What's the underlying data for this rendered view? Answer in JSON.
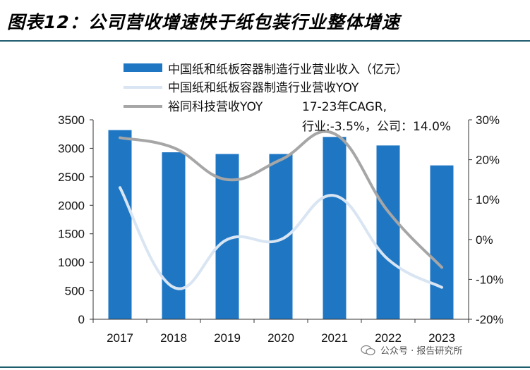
{
  "header": {
    "title": "图表12：公司营收增速快于纸包装行业整体增速"
  },
  "watermark": {
    "text": "公众号 · 报告研究所"
  },
  "annotation": {
    "line1": "17-23年CAGR,",
    "line2": "行业:-3.5%，公司：14.0%"
  },
  "colors": {
    "bar": "#1f77c4",
    "industry_line": "#d9e5f2",
    "company_line": "#a6a6a6",
    "rule": "#1e5d6e"
  },
  "chart_data": {
    "type": "bar",
    "categories": [
      "2017",
      "2018",
      "2019",
      "2020",
      "2021",
      "2022",
      "2023"
    ],
    "series": [
      {
        "name": "中国纸和纸板容器制造行业营业收入（亿元）",
        "type": "bar",
        "axis": "left",
        "values": [
          3320,
          2930,
          2900,
          2900,
          3200,
          3050,
          2700
        ]
      },
      {
        "name": "中国纸和纸板容器制造行业营收YOY",
        "type": "line",
        "axis": "right",
        "values": [
          13,
          -12,
          0,
          0,
          11,
          -5,
          -12
        ]
      },
      {
        "name": "裕同科技营收YOY",
        "type": "line",
        "axis": "right",
        "values": [
          25.5,
          23,
          15,
          20,
          26.5,
          7,
          -7
        ]
      }
    ],
    "y_left": {
      "min": 0,
      "max": 3500,
      "ticks": [
        "0",
        "500",
        "1000",
        "1500",
        "2000",
        "2500",
        "3000",
        "3500"
      ]
    },
    "y_right": {
      "min": -20,
      "max": 30,
      "ticks": [
        "-20%",
        "-10%",
        "0%",
        "10%",
        "20%",
        "30%"
      ]
    },
    "legend_placement": "top-left",
    "grid": false
  }
}
